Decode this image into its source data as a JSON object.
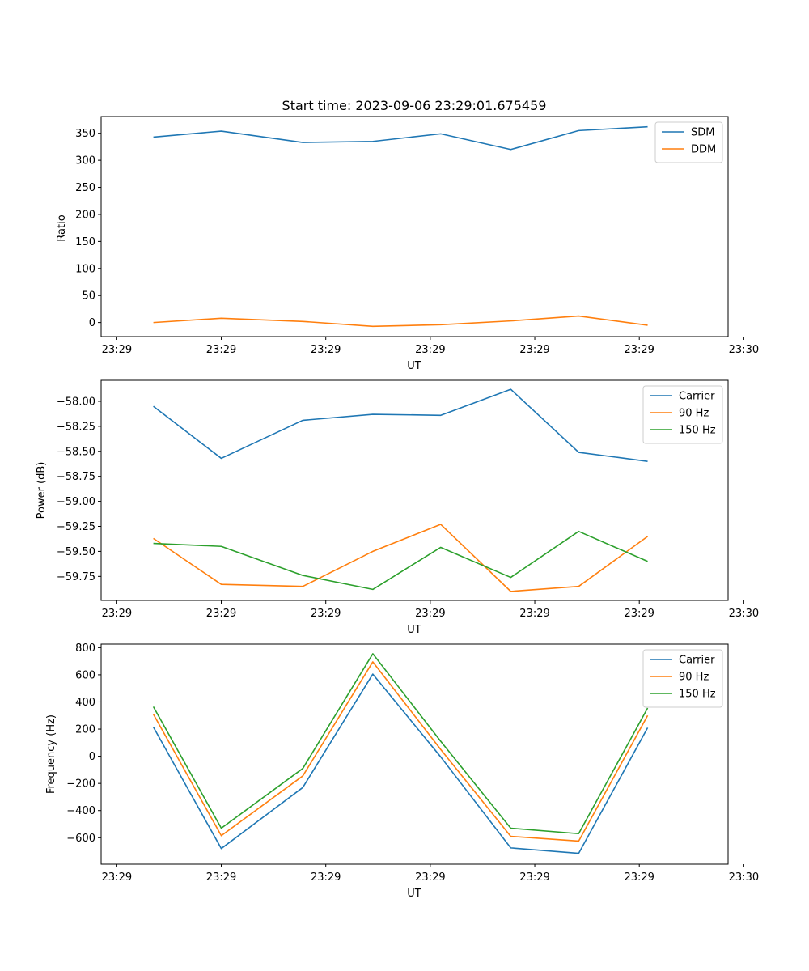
{
  "chart_data": [
    {
      "type": "line",
      "title": "Start time: 2023-09-06 23:29:01.675459",
      "xlabel": "UT",
      "ylabel": "Ratio",
      "xlim": [
        -0.15,
        5.85
      ],
      "x": [
        0.35,
        1.0,
        1.78,
        2.45,
        3.1,
        3.77,
        4.42,
        5.08
      ],
      "x_ticks": [
        0,
        1,
        2,
        3,
        4,
        5,
        6
      ],
      "x_tick_labels": [
        "23:29",
        "23:29",
        "23:29",
        "23:29",
        "23:29",
        "23:29",
        "23:30"
      ],
      "ylim": [
        -26,
        381
      ],
      "y_ticks": [
        0,
        50,
        100,
        150,
        200,
        250,
        300,
        350
      ],
      "y_tick_labels": [
        "0",
        "50",
        "100",
        "150",
        "200",
        "250",
        "300",
        "350"
      ],
      "legend_position": "top-right",
      "series": [
        {
          "name": "SDM",
          "color": "#1f77b4",
          "values": [
            343,
            354,
            333,
            335,
            349,
            320,
            355,
            362
          ]
        },
        {
          "name": "DDM",
          "color": "#ff7f0e",
          "values": [
            0,
            8,
            2,
            -7,
            -4,
            3,
            12,
            -5
          ]
        }
      ]
    },
    {
      "type": "line",
      "title": "",
      "xlabel": "UT",
      "ylabel": "Power (dB)",
      "xlim": [
        -0.15,
        5.85
      ],
      "x": [
        0.35,
        1.0,
        1.78,
        2.45,
        3.1,
        3.77,
        4.42,
        5.08
      ],
      "x_ticks": [
        0,
        1,
        2,
        3,
        4,
        5,
        6
      ],
      "x_tick_labels": [
        "23:29",
        "23:29",
        "23:29",
        "23:29",
        "23:29",
        "23:29",
        "23:30"
      ],
      "ylim": [
        -59.99,
        -57.79
      ],
      "y_ticks": [
        -58.0,
        -58.25,
        -58.5,
        -58.75,
        -59.0,
        -59.25,
        -59.5,
        -59.75
      ],
      "y_tick_labels": [
        "−58.00",
        "−58.25",
        "−58.50",
        "−58.75",
        "−59.00",
        "−59.25",
        "−59.50",
        "−59.75"
      ],
      "legend_position": "top-right",
      "series": [
        {
          "name": "Carrier",
          "color": "#1f77b4",
          "values": [
            -58.05,
            -58.57,
            -58.19,
            -58.13,
            -58.14,
            -57.88,
            -58.51,
            -58.6
          ]
        },
        {
          "name": "90 Hz",
          "color": "#ff7f0e",
          "values": [
            -59.37,
            -59.83,
            -59.85,
            -59.5,
            -59.23,
            -59.9,
            -59.85,
            -59.35
          ]
        },
        {
          "name": "150 Hz",
          "color": "#2ca02c",
          "values": [
            -59.42,
            -59.45,
            -59.74,
            -59.88,
            -59.46,
            -59.76,
            -59.3,
            -59.6
          ]
        }
      ]
    },
    {
      "type": "line",
      "title": "",
      "xlabel": "UT",
      "ylabel": "Frequency (Hz)",
      "xlim": [
        -0.15,
        5.85
      ],
      "x": [
        0.35,
        1.0,
        1.78,
        2.45,
        3.1,
        3.77,
        4.42,
        5.08
      ],
      "x_ticks": [
        0,
        1,
        2,
        3,
        4,
        5,
        6
      ],
      "x_tick_labels": [
        "23:29",
        "23:29",
        "23:29",
        "23:29",
        "23:29",
        "23:29",
        "23:30"
      ],
      "ylim": [
        -795,
        826
      ],
      "y_ticks": [
        -600,
        -400,
        -200,
        0,
        200,
        400,
        600,
        800
      ],
      "y_tick_labels": [
        "−600",
        "−400",
        "−200",
        "0",
        "200",
        "400",
        "600",
        "800"
      ],
      "legend_position": "top-right",
      "series": [
        {
          "name": "Carrier",
          "color": "#1f77b4",
          "values": [
            215,
            -680,
            -230,
            605,
            -5,
            -675,
            -715,
            210
          ]
        },
        {
          "name": "90 Hz",
          "color": "#ff7f0e",
          "values": [
            310,
            -585,
            -145,
            695,
            50,
            -590,
            -625,
            300
          ]
        },
        {
          "name": "150 Hz",
          "color": "#2ca02c",
          "values": [
            365,
            -530,
            -90,
            755,
            110,
            -530,
            -570,
            355
          ]
        }
      ]
    }
  ]
}
